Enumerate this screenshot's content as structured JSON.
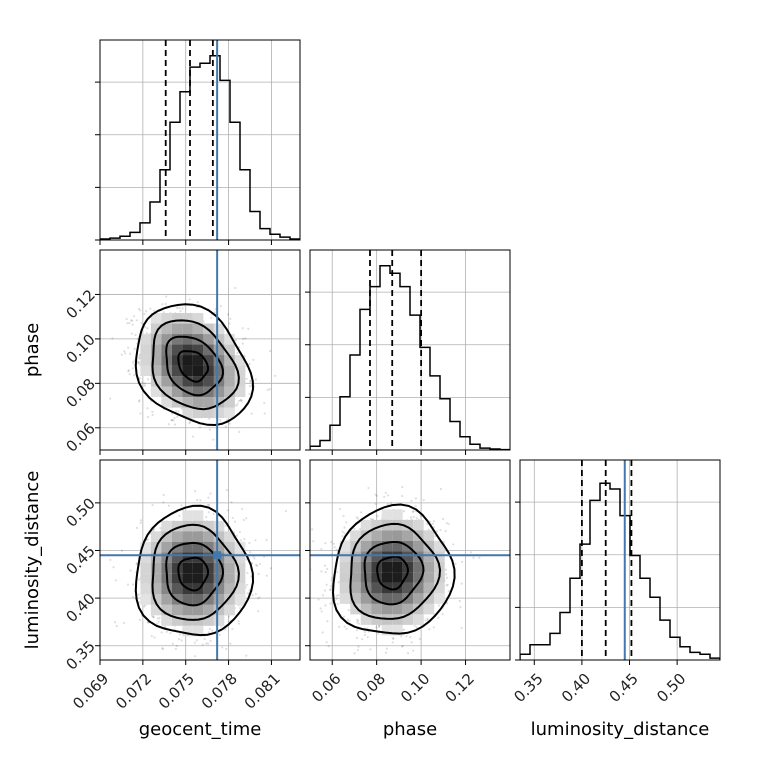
{
  "chart_data": {
    "type": "corner",
    "parameters": [
      "geocent_time",
      "phase",
      "luminosity_distance"
    ],
    "axis_labels": {
      "geocent_time": "geocent_time",
      "phase": "phase",
      "luminosity_distance": "luminosity_distance"
    },
    "ranges": {
      "geocent_time": [
        0.069,
        0.083
      ],
      "phase": [
        0.05,
        0.14
      ],
      "luminosity_distance": [
        0.335,
        0.545
      ]
    },
    "ticks": {
      "geocent_time": [
        {
          "value": 0.069,
          "label": "0.069"
        },
        {
          "value": 0.072,
          "label": "0.072"
        },
        {
          "value": 0.075,
          "label": "0.075"
        },
        {
          "value": 0.078,
          "label": "0.078"
        },
        {
          "value": 0.081,
          "label": "0.081"
        }
      ],
      "phase": [
        {
          "value": 0.06,
          "label": "0.06"
        },
        {
          "value": 0.08,
          "label": "0.08"
        },
        {
          "value": 0.1,
          "label": "0.10"
        },
        {
          "value": 0.12,
          "label": "0.12"
        }
      ],
      "luminosity_distance": [
        {
          "value": 0.35,
          "label": "0.35"
        },
        {
          "value": 0.4,
          "label": "0.40"
        },
        {
          "value": 0.45,
          "label": "0.45"
        },
        {
          "value": 0.5,
          "label": "0.50"
        }
      ]
    },
    "truths": {
      "geocent_time": 0.0772,
      "luminosity_distance": 0.445
    },
    "quantiles": {
      "geocent_time": [
        0.0736,
        0.0753,
        0.0769
      ],
      "phase": [
        0.077,
        0.087,
        0.1
      ],
      "luminosity_distance": [
        0.4,
        0.425,
        0.452
      ]
    },
    "histograms": {
      "geocent_time": [
        0.005,
        0.01,
        0.02,
        0.04,
        0.09,
        0.2,
        0.37,
        0.62,
        0.78,
        0.91,
        0.93,
        0.97,
        0.84,
        0.62,
        0.37,
        0.15,
        0.06,
        0.03,
        0.015,
        0.005
      ],
      "phase": [
        0.02,
        0.05,
        0.13,
        0.28,
        0.5,
        0.74,
        0.86,
        0.97,
        0.93,
        0.86,
        0.71,
        0.54,
        0.39,
        0.27,
        0.15,
        0.07,
        0.03,
        0.01,
        0.005,
        0.002
      ],
      "luminosity_distance": [
        0.03,
        0.08,
        0.08,
        0.14,
        0.25,
        0.43,
        0.61,
        0.84,
        0.93,
        0.9,
        0.76,
        0.55,
        0.43,
        0.33,
        0.21,
        0.12,
        0.07,
        0.04,
        0.03,
        0.01
      ]
    },
    "posterior_2d": {
      "phase_vs_geocent_time": {
        "mean": [
          0.0755,
          0.088
        ],
        "sigma": [
          0.0018,
          0.012
        ],
        "rho": -0.25
      },
      "luminosity_distance_vs_geocent_time": {
        "mean": [
          0.0755,
          0.426
        ],
        "sigma": [
          0.0018,
          0.03
        ],
        "rho": 0.0
      },
      "luminosity_distance_vs_phase": {
        "mean": [
          0.087,
          0.427
        ],
        "sigma": [
          0.012,
          0.03
        ],
        "rho": 0.05
      }
    },
    "grid": true,
    "colors": {
      "truth": "#4477aa",
      "histogram": "#000000",
      "density": "#000000",
      "grid": "#b0b0b0"
    }
  }
}
